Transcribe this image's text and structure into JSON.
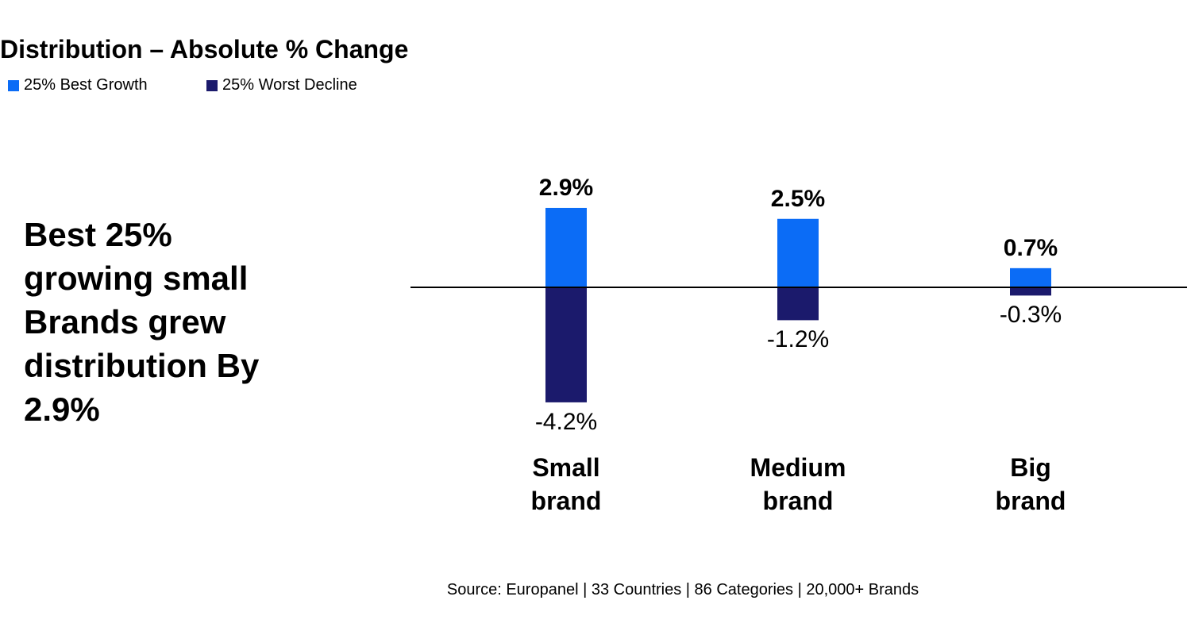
{
  "chart_data": {
    "type": "bar",
    "title": "Distribution – Absolute % Change",
    "categories": [
      "Small brand",
      "Medium brand",
      "Big brand"
    ],
    "series": [
      {
        "name": "25% Best Growth",
        "color": "#0b6cf6",
        "values": [
          2.9,
          2.5,
          0.7
        ],
        "value_labels": [
          "2.9%",
          "2.5%",
          "0.7%"
        ]
      },
      {
        "name": "25% Worst Decline",
        "color": "#1b1a6c",
        "values": [
          -4.2,
          -1.2,
          -0.3
        ],
        "value_labels": [
          "-4.2%",
          "-1.2%",
          "-0.3%"
        ]
      }
    ],
    "annotation": "Best 25% growing small Brands grew distribution By 2.9%",
    "source": "Source: Europanel  | 33 Countries | 86 Categories | 20,000+ Brands"
  }
}
